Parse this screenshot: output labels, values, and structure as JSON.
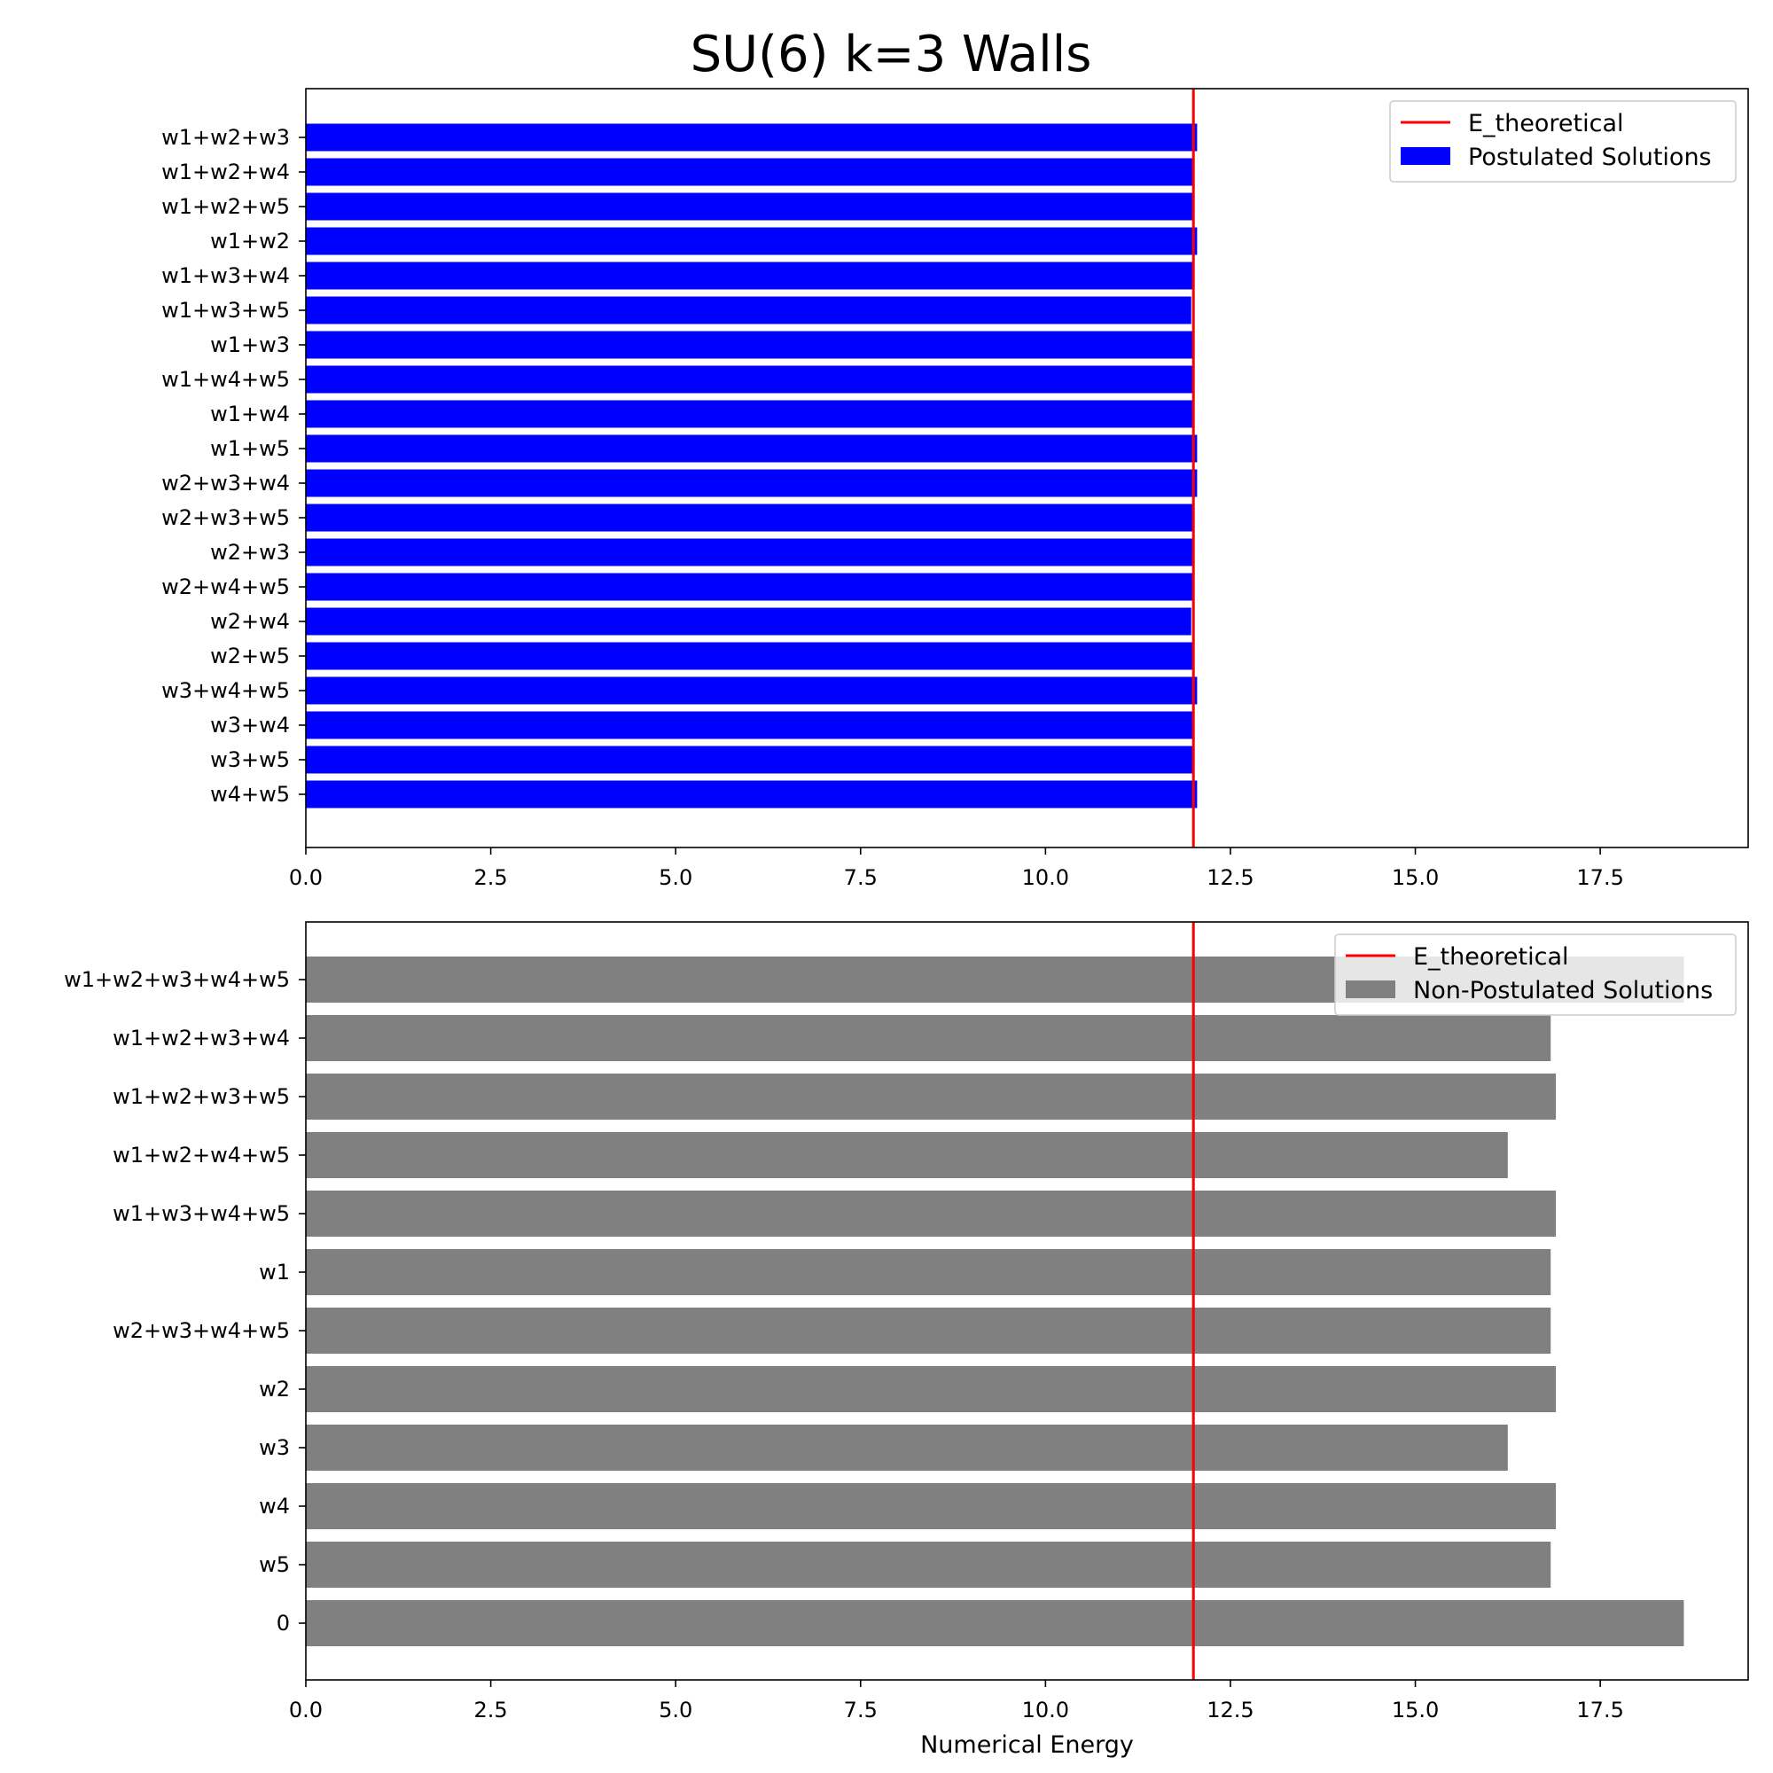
{
  "figure_title": "SU(6) k=3 Walls",
  "colors": {
    "reference_line": "#ff0000",
    "postulated_bar": "#0000ff",
    "non_postulated_bar": "#808080",
    "axes": "#000000",
    "background": "#ffffff"
  },
  "chart_data": [
    {
      "type": "bar",
      "orientation": "horizontal",
      "title": "",
      "xlabel": "",
      "ylabel": "",
      "xlim": [
        0,
        19.5
      ],
      "x_ticks": [
        0,
        2.5,
        5,
        7.5,
        10,
        12.5,
        15,
        17.5
      ],
      "x_tick_labels": [
        "0.0",
        "2.5",
        "5.0",
        "7.5",
        "10.0",
        "12.5",
        "15.0",
        "17.5"
      ],
      "grid": false,
      "legend_position": "top-right",
      "categories": [
        "w1+w2+w3",
        "w1+w2+w4",
        "w1+w2+w5",
        "w1+w2",
        "w1+w3+w4",
        "w1+w3+w5",
        "w1+w3",
        "w1+w4+w5",
        "w1+w4",
        "w1+w5",
        "w2+w3+w4",
        "w2+w3+w5",
        "w2+w3",
        "w2+w4+w5",
        "w2+w4",
        "w2+w5",
        "w3+w4+w5",
        "w3+w4",
        "w3+w5",
        "w4+w5"
      ],
      "series": [
        {
          "name": "Postulated Solutions",
          "color": "#0000ff",
          "values": [
            12.05,
            12.0,
            12.0,
            12.05,
            12.0,
            11.97,
            12.0,
            12.0,
            12.0,
            12.05,
            12.05,
            12.0,
            12.0,
            12.0,
            11.97,
            12.0,
            12.05,
            12.0,
            12.0,
            12.05
          ]
        }
      ],
      "reference_lines": [
        {
          "name": "E_theoretical",
          "x": 12.0,
          "color": "#ff0000"
        }
      ]
    },
    {
      "type": "bar",
      "orientation": "horizontal",
      "title": "",
      "xlabel": "Numerical Energy",
      "ylabel": "",
      "xlim": [
        0,
        19.5
      ],
      "x_ticks": [
        0,
        2.5,
        5,
        7.5,
        10,
        12.5,
        15,
        17.5
      ],
      "x_tick_labels": [
        "0.0",
        "2.5",
        "5.0",
        "7.5",
        "10.0",
        "12.5",
        "15.0",
        "17.5"
      ],
      "grid": false,
      "legend_position": "top-right",
      "categories": [
        "w1+w2+w3+w4+w5",
        "w1+w2+w3+w4",
        "w1+w2+w3+w5",
        "w1+w2+w4+w5",
        "w1+w3+w4+w5",
        "w1",
        "w2+w3+w4+w5",
        "w2",
        "w3",
        "w4",
        "w5",
        "0"
      ],
      "series": [
        {
          "name": "Non-Postulated Solutions",
          "color": "#808080",
          "values": [
            18.63,
            16.83,
            16.9,
            16.25,
            16.9,
            16.83,
            16.83,
            16.9,
            16.25,
            16.9,
            16.83,
            18.63
          ]
        }
      ],
      "reference_lines": [
        {
          "name": "E_theoretical",
          "x": 12.0,
          "color": "#ff0000"
        }
      ]
    }
  ]
}
